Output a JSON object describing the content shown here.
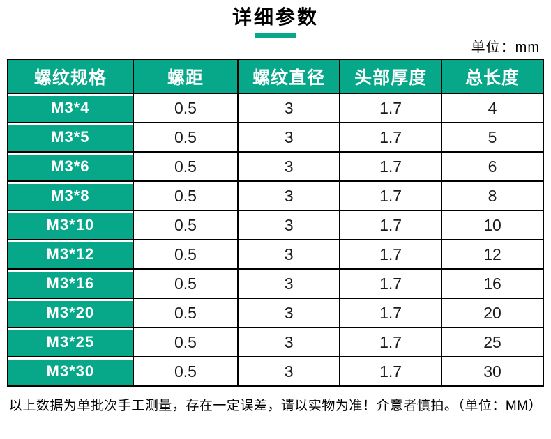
{
  "page": {
    "title": "详细参数",
    "unit_label": "单位：mm",
    "footer_note": "以上数据为单批次手工测量，存在一定误差，请以实物为准！介意者慎拍。（单位：MM）"
  },
  "colors": {
    "accent_green": "#07a78a",
    "border_black": "#000000",
    "header_text_white": "#ffffff",
    "cell_text_dark": "#1a1a1a"
  },
  "table": {
    "headers": [
      "螺纹规格",
      "螺距",
      "螺纹直径",
      "头部厚度",
      "总长度"
    ],
    "rows": [
      [
        "M3*4",
        "0.5",
        "3",
        "1.7",
        "4"
      ],
      [
        "M3*5",
        "0.5",
        "3",
        "1.7",
        "5"
      ],
      [
        "M3*6",
        "0.5",
        "3",
        "1.7",
        "6"
      ],
      [
        "M3*8",
        "0.5",
        "3",
        "1.7",
        "8"
      ],
      [
        "M3*10",
        "0.5",
        "3",
        "1.7",
        "10"
      ],
      [
        "M3*12",
        "0.5",
        "3",
        "1.7",
        "12"
      ],
      [
        "M3*16",
        "0.5",
        "3",
        "1.7",
        "16"
      ],
      [
        "M3*20",
        "0.5",
        "3",
        "1.7",
        "20"
      ],
      [
        "M3*25",
        "0.5",
        "3",
        "1.7",
        "25"
      ],
      [
        "M3*30",
        "0.5",
        "3",
        "1.7",
        "30"
      ]
    ]
  }
}
